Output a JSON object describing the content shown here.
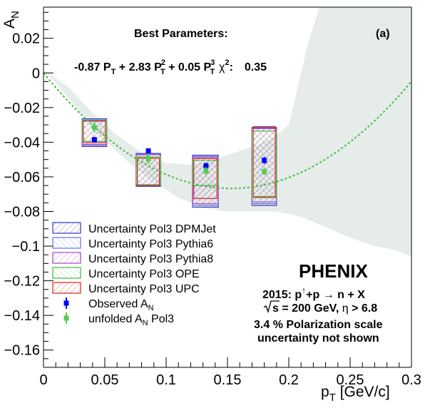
{
  "chart_data": {
    "type": "scatter",
    "xlabel": "p",
    "xlabel_sub": "T",
    "xlabel_unit": " [GeV/c]",
    "ylabel": "A",
    "ylabel_sub": "N",
    "xlim": [
      0,
      0.3
    ],
    "ylim": [
      -0.17,
      0.038
    ],
    "x_ticks": [
      0,
      0.05,
      0.1,
      0.15,
      0.2,
      0.25,
      0.3
    ],
    "x_tick_labels": [
      "0",
      "0.05",
      "0.1",
      "0.15",
      "0.2",
      "0.25",
      "0.3"
    ],
    "y_ticks": [
      0.02,
      0,
      -0.02,
      -0.04,
      -0.06,
      -0.08,
      -0.1,
      -0.12,
      -0.14,
      -0.16
    ],
    "y_tick_labels": [
      "0.02",
      "0",
      "−0.02",
      "−0.04",
      "−0.06",
      "−0.08",
      "−0.1",
      "−0.12",
      "−0.14",
      "−0.16"
    ],
    "series": [
      {
        "name": "Observed A",
        "name_sub": "N",
        "color": "#0000ff",
        "x": [
          0.0415,
          0.0855,
          0.1325,
          0.18
        ],
        "y": [
          -0.0385,
          -0.045,
          -0.0535,
          -0.0505
        ],
        "err": [
          0.0015,
          0.0015,
          0.0015,
          0.002
        ]
      },
      {
        "name": "unfolded A",
        "name_sub": "N",
        "name_suffix": " Pol3",
        "color": "#55cc55",
        "x": [
          0.0415,
          0.0855,
          0.1325,
          0.18
        ],
        "y": [
          -0.0315,
          -0.0495,
          -0.0565,
          -0.057
        ],
        "err": [
          0.003,
          0.003,
          0.002,
          0.002
        ]
      }
    ],
    "uncertainty_boxes": [
      {
        "name": "Uncertainty Pol3 DPMJet",
        "color": "#3333cc",
        "boxes": [
          [
            0.0315,
            0.0515,
            -0.0265,
            -0.0425
          ],
          [
            0.0755,
            0.0955,
            -0.0465,
            -0.0655
          ],
          [
            0.1215,
            0.1425,
            -0.0475,
            -0.0775
          ],
          [
            0.17,
            0.19,
            -0.0315,
            -0.0765
          ]
        ]
      },
      {
        "name": "Uncertainty Pol3 Pythia6",
        "color": "#6677cc",
        "boxes": [
          [
            0.0315,
            0.0515,
            -0.0272,
            -0.0418
          ],
          [
            0.0755,
            0.0955,
            -0.0468,
            -0.0652
          ],
          [
            0.1215,
            0.1425,
            -0.0482,
            -0.0765
          ],
          [
            0.17,
            0.19,
            -0.0318,
            -0.0755
          ]
        ]
      },
      {
        "name": "Uncertainty Pol3 Pythia8",
        "color": "#aa44cc",
        "boxes": [
          [
            0.0315,
            0.0515,
            -0.0278,
            -0.0412
          ],
          [
            0.0755,
            0.0955,
            -0.0472,
            -0.0648
          ],
          [
            0.1215,
            0.1425,
            -0.0488,
            -0.0755
          ],
          [
            0.17,
            0.19,
            -0.0322,
            -0.0745
          ]
        ]
      },
      {
        "name": "Uncertainty Pol3 OPE",
        "color": "#44bb44",
        "boxes": [
          [
            0.0315,
            0.0515,
            -0.0275,
            -0.0395
          ],
          [
            0.0755,
            0.0955,
            -0.0485,
            -0.0645
          ],
          [
            0.1215,
            0.1425,
            -0.0505,
            -0.065
          ],
          [
            0.17,
            0.19,
            -0.0335,
            -0.072
          ]
        ]
      },
      {
        "name": "Uncertainty Pol3 UPC",
        "color": "#dd2222",
        "boxes": [
          [
            0.0325,
            0.0505,
            -0.0278,
            -0.0402
          ],
          [
            0.0765,
            0.0945,
            -0.0492,
            -0.0652
          ],
          [
            0.1225,
            0.1415,
            -0.0495,
            -0.0725
          ],
          [
            0.171,
            0.189,
            -0.031,
            -0.0715
          ]
        ]
      }
    ],
    "fit": {
      "color": "#44bb44",
      "p1": -0.87,
      "p2": 2.83,
      "p3": 0.05,
      "band_upper": [
        [
          0,
          0.002
        ],
        [
          0.02,
          -0.008
        ],
        [
          0.04,
          -0.023
        ],
        [
          0.06,
          -0.036
        ],
        [
          0.08,
          -0.046
        ],
        [
          0.1,
          -0.052
        ],
        [
          0.12,
          -0.053
        ],
        [
          0.14,
          -0.05
        ],
        [
          0.16,
          -0.045
        ],
        [
          0.18,
          -0.04
        ],
        [
          0.19,
          -0.036
        ],
        [
          0.2,
          -0.03
        ],
        [
          0.205,
          -0.015
        ],
        [
          0.21,
          0.0
        ],
        [
          0.215,
          0.015
        ],
        [
          0.22,
          0.027
        ],
        [
          0.225,
          0.038
        ],
        [
          0.3,
          0.038
        ]
      ],
      "band_lower": [
        [
          0.3,
          -0.106
        ],
        [
          0.285,
          -0.102
        ],
        [
          0.27,
          -0.1
        ],
        [
          0.25,
          -0.095
        ],
        [
          0.23,
          -0.089
        ],
        [
          0.21,
          -0.083
        ],
        [
          0.19,
          -0.08
        ],
        [
          0.17,
          -0.08
        ],
        [
          0.15,
          -0.08
        ],
        [
          0.13,
          -0.078
        ],
        [
          0.11,
          -0.072
        ],
        [
          0.09,
          -0.063
        ],
        [
          0.07,
          -0.052
        ],
        [
          0.05,
          -0.039
        ],
        [
          0.03,
          -0.023
        ],
        [
          0.015,
          -0.01
        ],
        [
          0,
          0.002
        ]
      ]
    },
    "legend_placement": "bottom-left",
    "grid": false
  },
  "panel_label": "(a)",
  "best_params": {
    "title": "Best Parameters:",
    "t1": "-0.87 P",
    "t2": " + 2.83 P",
    "t3": " + 0.05 P",
    "sub": "T",
    "sup2": "2",
    "sup3": "3",
    "chi": "χ",
    "chi_sup": "2",
    "chi_tail": ":",
    "chi_value": "0.35"
  },
  "experiment": {
    "name": "PHENIX",
    "line1_a": "2015: p",
    "line1_arrow": "↑",
    "line1_b": "+p  → n + X",
    "line2_a": "s = 200 GeV, ",
    "line2_eta": "η",
    "line2_b": " > 6.8",
    "line3": "3.4 % Polarization scale",
    "line4": "uncertainty not shown"
  }
}
